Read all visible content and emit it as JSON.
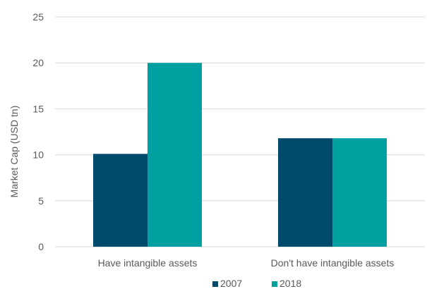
{
  "chart_data": {
    "type": "bar",
    "title": "",
    "xlabel": "",
    "ylabel": "Market Cap (USD tn)",
    "ylim": [
      0,
      25
    ],
    "yticks": [
      0,
      5,
      10,
      15,
      20,
      25
    ],
    "grid": true,
    "legend_position": "bottom",
    "categories": [
      "Have intangible assets",
      "Don't have intangible assets"
    ],
    "series": [
      {
        "name": "2007",
        "color": "#004B6B",
        "values": [
          10.1,
          11.8
        ]
      },
      {
        "name": "2018",
        "color": "#00A0A0",
        "values": [
          20.0,
          11.8
        ]
      }
    ]
  }
}
